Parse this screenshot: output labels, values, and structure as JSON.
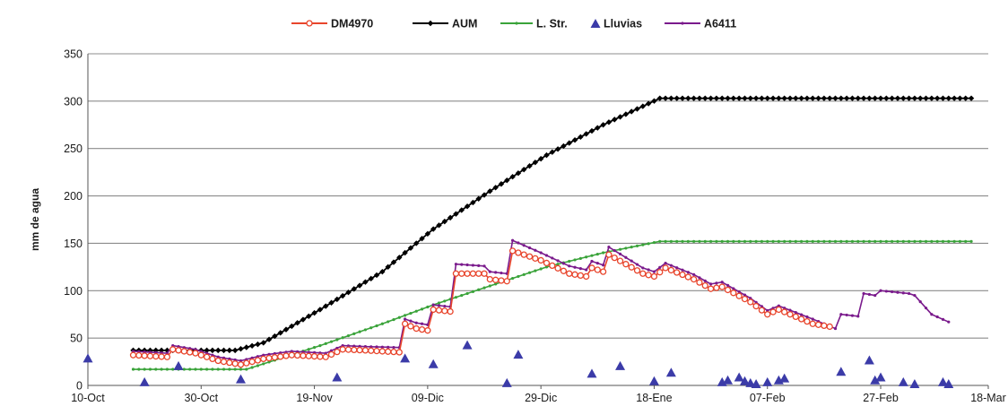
{
  "chart_data": {
    "type": "line",
    "title": "",
    "xlabel": "",
    "ylabel": "mm de agua",
    "ylim": [
      0,
      350
    ],
    "yticks": [
      0,
      50,
      100,
      150,
      200,
      250,
      300,
      350
    ],
    "xlim": [
      "2000-10-10",
      "2001-03-18"
    ],
    "xticks": [
      {
        "date": "2000-10-10",
        "label": "10-Oct"
      },
      {
        "date": "2000-10-30",
        "label": "30-Oct"
      },
      {
        "date": "2000-11-19",
        "label": "19-Nov"
      },
      {
        "date": "2000-12-09",
        "label": "09-Dic"
      },
      {
        "date": "2000-12-29",
        "label": "29-Dic"
      },
      {
        "date": "2001-01-18",
        "label": "18-Ene"
      },
      {
        "date": "2001-02-07",
        "label": "07-Feb"
      },
      {
        "date": "2001-02-27",
        "label": "27-Feb"
      },
      {
        "date": "2001-03-18",
        "label": "18-Mar"
      }
    ],
    "grid": "horizontal",
    "legend_position": "top",
    "series": [
      {
        "name": "DM4970",
        "color": "#e8452c",
        "marker": "open-circle",
        "points": [
          [
            "2000-10-18",
            32
          ],
          [
            "2000-10-24",
            30
          ],
          [
            "2000-10-25",
            38
          ],
          [
            "2000-10-29",
            34
          ],
          [
            "2000-11-02",
            26
          ],
          [
            "2000-11-06",
            22
          ],
          [
            "2000-11-10",
            28
          ],
          [
            "2000-11-15",
            32
          ],
          [
            "2000-11-21",
            30
          ],
          [
            "2000-11-24",
            38
          ],
          [
            "2000-11-28",
            37
          ],
          [
            "2000-12-04",
            35
          ],
          [
            "2000-12-05",
            65
          ],
          [
            "2000-12-07",
            60
          ],
          [
            "2000-12-09",
            58
          ],
          [
            "2000-12-10",
            80
          ],
          [
            "2000-12-13",
            78
          ],
          [
            "2000-12-14",
            118
          ],
          [
            "2000-12-19",
            118
          ],
          [
            "2000-12-20",
            112
          ],
          [
            "2000-12-23",
            110
          ],
          [
            "2000-12-24",
            142
          ],
          [
            "2000-12-29",
            132
          ],
          [
            "2001-01-03",
            118
          ],
          [
            "2001-01-06",
            115
          ],
          [
            "2001-01-07",
            124
          ],
          [
            "2001-01-09",
            120
          ],
          [
            "2001-01-10",
            138
          ],
          [
            "2001-01-16",
            118
          ],
          [
            "2001-01-18",
            115
          ],
          [
            "2001-01-20",
            124
          ],
          [
            "2001-01-25",
            112
          ],
          [
            "2001-01-28",
            102
          ],
          [
            "2001-01-30",
            104
          ],
          [
            "2001-02-04",
            88
          ],
          [
            "2001-02-07",
            75
          ],
          [
            "2001-02-09",
            80
          ],
          [
            "2001-02-15",
            65
          ],
          [
            "2001-02-18",
            62
          ]
        ]
      },
      {
        "name": "AUM",
        "color": "#000000",
        "marker": "filled-diamond",
        "points": [
          [
            "2000-10-18",
            37
          ],
          [
            "2000-11-05",
            37
          ],
          [
            "2000-11-10",
            45
          ],
          [
            "2000-11-20",
            80
          ],
          [
            "2000-12-01",
            120
          ],
          [
            "2000-12-10",
            165
          ],
          [
            "2000-12-20",
            205
          ],
          [
            "2000-12-30",
            243
          ],
          [
            "2001-01-09",
            275
          ],
          [
            "2001-01-19",
            303
          ],
          [
            "2001-03-15",
            303
          ]
        ]
      },
      {
        "name": "L. Str.",
        "color": "#3aa33a",
        "marker": "small-dot",
        "points": [
          [
            "2000-10-18",
            17
          ],
          [
            "2000-11-07",
            17
          ],
          [
            "2000-11-20",
            42
          ],
          [
            "2000-12-01",
            65
          ],
          [
            "2000-12-10",
            85
          ],
          [
            "2000-12-20",
            105
          ],
          [
            "2000-12-30",
            125
          ],
          [
            "2001-01-09",
            140
          ],
          [
            "2001-01-19",
            152
          ],
          [
            "2001-03-15",
            152
          ]
        ]
      },
      {
        "name": "A6411",
        "color": "#7a1a8c",
        "marker": "small-dot",
        "points": [
          [
            "2000-10-18",
            36
          ],
          [
            "2000-10-24",
            34
          ],
          [
            "2000-10-25",
            42
          ],
          [
            "2000-10-29",
            38
          ],
          [
            "2000-11-02",
            30
          ],
          [
            "2000-11-06",
            26
          ],
          [
            "2000-11-10",
            32
          ],
          [
            "2000-11-15",
            36
          ],
          [
            "2000-11-21",
            34
          ],
          [
            "2000-11-24",
            42
          ],
          [
            "2000-11-28",
            41
          ],
          [
            "2000-12-04",
            40
          ],
          [
            "2000-12-05",
            70
          ],
          [
            "2000-12-07",
            66
          ],
          [
            "2000-12-09",
            64
          ],
          [
            "2000-12-10",
            85
          ],
          [
            "2000-12-13",
            83
          ],
          [
            "2000-12-14",
            128
          ],
          [
            "2000-12-19",
            126
          ],
          [
            "2000-12-20",
            120
          ],
          [
            "2000-12-23",
            118
          ],
          [
            "2000-12-24",
            153
          ],
          [
            "2000-12-29",
            140
          ],
          [
            "2001-01-03",
            126
          ],
          [
            "2001-01-06",
            122
          ],
          [
            "2001-01-07",
            131
          ],
          [
            "2001-01-09",
            127
          ],
          [
            "2001-01-10",
            146
          ],
          [
            "2001-01-16",
            124
          ],
          [
            "2001-01-18",
            120
          ],
          [
            "2001-01-20",
            129
          ],
          [
            "2001-01-25",
            117
          ],
          [
            "2001-01-28",
            107
          ],
          [
            "2001-01-30",
            109
          ],
          [
            "2001-02-04",
            92
          ],
          [
            "2001-02-07",
            79
          ],
          [
            "2001-02-09",
            84
          ],
          [
            "2001-02-15",
            70
          ],
          [
            "2001-02-19",
            60
          ],
          [
            "2001-02-20",
            75
          ],
          [
            "2001-02-23",
            73
          ],
          [
            "2001-02-24",
            97
          ],
          [
            "2001-02-26",
            95
          ],
          [
            "2001-02-27",
            100
          ],
          [
            "2001-03-04",
            97
          ],
          [
            "2001-03-05",
            95
          ],
          [
            "2001-03-08",
            75
          ],
          [
            "2001-03-11",
            67
          ]
        ]
      },
      {
        "name": "Lluvias",
        "color": "#3b3ba8",
        "marker": "triangle",
        "points": [
          [
            "2000-10-10",
            28
          ],
          [
            "2000-10-20",
            3
          ],
          [
            "2000-10-26",
            20
          ],
          [
            "2000-11-06",
            6
          ],
          [
            "2000-11-23",
            8
          ],
          [
            "2000-12-05",
            28
          ],
          [
            "2000-12-10",
            22
          ],
          [
            "2000-12-16",
            42
          ],
          [
            "2000-12-23",
            2
          ],
          [
            "2000-12-25",
            32
          ],
          [
            "2001-01-07",
            12
          ],
          [
            "2001-01-12",
            20
          ],
          [
            "2001-01-18",
            4
          ],
          [
            "2001-01-21",
            13
          ],
          [
            "2001-01-30",
            3
          ],
          [
            "2001-01-31",
            5
          ],
          [
            "2001-02-02",
            8
          ],
          [
            "2001-02-03",
            4
          ],
          [
            "2001-02-04",
            2
          ],
          [
            "2001-02-05",
            1
          ],
          [
            "2001-02-07",
            3
          ],
          [
            "2001-02-09",
            5
          ],
          [
            "2001-02-10",
            7
          ],
          [
            "2001-02-20",
            14
          ],
          [
            "2001-02-25",
            26
          ],
          [
            "2001-02-26",
            5
          ],
          [
            "2001-02-27",
            8
          ],
          [
            "2001-03-03",
            3
          ],
          [
            "2001-03-05",
            1
          ],
          [
            "2001-03-10",
            3
          ],
          [
            "2001-03-11",
            1
          ]
        ]
      }
    ],
    "legend_order": [
      "DM4970",
      "AUM",
      "L. Str.",
      "Lluvias",
      "A6411"
    ]
  }
}
